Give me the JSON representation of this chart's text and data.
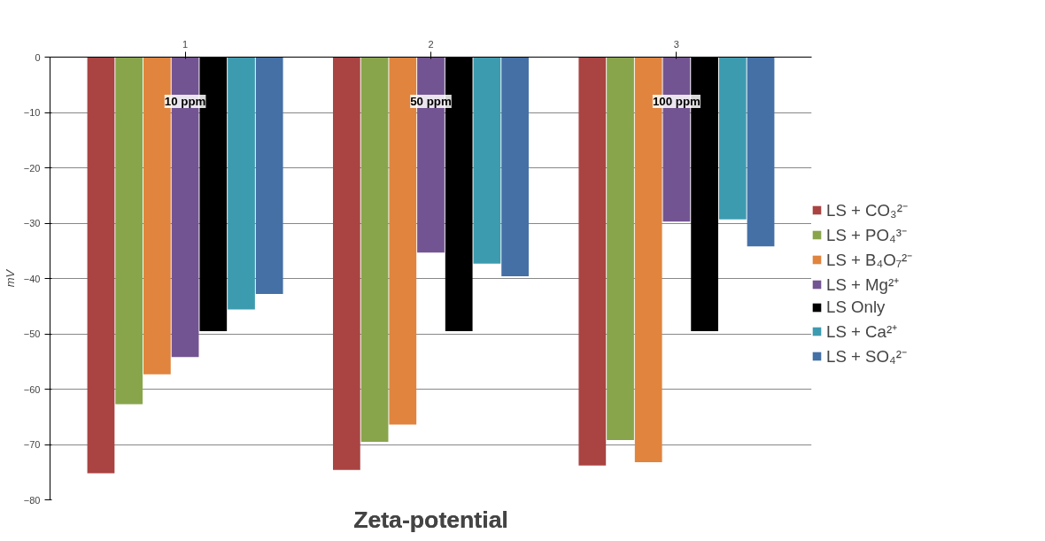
{
  "chart_data": {
    "type": "bar",
    "title": "Zeta-potential",
    "ylabel": "mV",
    "categories": [
      "1",
      "2",
      "3"
    ],
    "series": [
      {
        "name": "LS + CO₃²⁻",
        "color": "#a94442",
        "values": [
          -75.2,
          -74.6,
          -73.8
        ]
      },
      {
        "name": "LS + PO₄³⁻",
        "color": "#88a54b",
        "values": [
          -62.7,
          -69.5,
          -69.2
        ]
      },
      {
        "name": "LS + B₄O₇²⁻",
        "color": "#e0843e",
        "values": [
          -57.3,
          -66.4,
          -73.2
        ]
      },
      {
        "name": "LS + Mg²⁺",
        "color": "#735492",
        "values": [
          -54.2,
          -35.3,
          -29.7
        ]
      },
      {
        "name": "LS Only",
        "color": "#000000",
        "values": [
          -49.5,
          -49.5,
          -49.5
        ]
      },
      {
        "name": "LS + Ca²⁺",
        "color": "#3d9bb0",
        "values": [
          -45.6,
          -37.3,
          -29.3
        ]
      },
      {
        "name": "LS + SO₄²⁻",
        "color": "#4470a6",
        "values": [
          -42.8,
          -39.6,
          -34.2
        ]
      }
    ],
    "annotations": [
      "10 ppm",
      "50 ppm",
      "100 ppm"
    ],
    "ylim": [
      -80,
      0
    ],
    "yticks": [
      -80,
      -70,
      -60,
      -50,
      -40,
      -30,
      -20,
      -10,
      0
    ],
    "grid": "y",
    "legend": "right"
  }
}
